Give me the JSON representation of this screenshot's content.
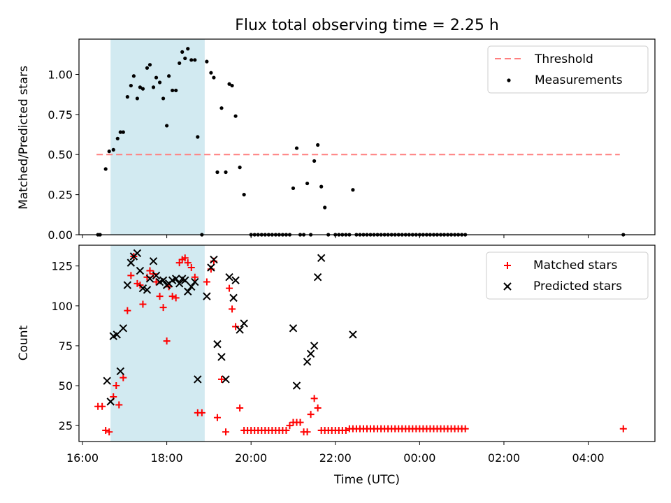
{
  "title": "Flux total observing time = 2.25 h",
  "xlabel": "Time (UTC)",
  "xticks": [
    "16:00",
    "18:00",
    "20:00",
    "22:00",
    "00:00",
    "02:00",
    "04:00"
  ],
  "colors": {
    "threshold": "#ff7f7f",
    "matched": "#ff0000",
    "predicted": "#000000",
    "shade": "#add8e6"
  },
  "chart_data": [
    {
      "type": "scatter",
      "panel": "top",
      "ylabel": "Matched/Predicted stars",
      "ylim": [
        0,
        1.22
      ],
      "yticks": [
        "0.00",
        "0.25",
        "0.50",
        "0.75",
        "1.00"
      ],
      "xlim": [
        "15:55",
        "05:35"
      ],
      "shaded_region": {
        "from": "16:40",
        "to": "18:54"
      },
      "legend": {
        "placement": "top-right",
        "entries": [
          "Threshold",
          "Measurements"
        ]
      },
      "threshold": {
        "name": "Threshold",
        "value": 0.5,
        "x_from": "16:20",
        "x_to": "04:45"
      },
      "series": [
        {
          "name": "Measurements",
          "marker": "dot",
          "points": [
            [
              "16:22",
              0
            ],
            [
              "16:25",
              0
            ],
            [
              "16:33",
              0.41
            ],
            [
              "16:38",
              0.52
            ],
            [
              "16:44",
              0.53
            ],
            [
              "16:50",
              0.6
            ],
            [
              "16:54",
              0.64
            ],
            [
              "16:58",
              0.64
            ],
            [
              "17:04",
              0.86
            ],
            [
              "17:09",
              0.93
            ],
            [
              "17:13",
              0.99
            ],
            [
              "17:18",
              0.85
            ],
            [
              "17:22",
              0.92
            ],
            [
              "17:26",
              0.91
            ],
            [
              "17:32",
              1.04
            ],
            [
              "17:36",
              1.06
            ],
            [
              "17:41",
              0.92
            ],
            [
              "17:45",
              0.98
            ],
            [
              "17:50",
              0.95
            ],
            [
              "17:55",
              0.85
            ],
            [
              "18:00",
              0.68
            ],
            [
              "18:03",
              0.99
            ],
            [
              "18:08",
              0.9
            ],
            [
              "18:13",
              0.9
            ],
            [
              "18:18",
              1.07
            ],
            [
              "18:22",
              1.14
            ],
            [
              "18:26",
              1.1
            ],
            [
              "18:30",
              1.16
            ],
            [
              "18:35",
              1.09
            ],
            [
              "18:40",
              1.09
            ],
            [
              "18:44",
              0.61
            ],
            [
              "18:50",
              0
            ],
            [
              "18:57",
              1.08
            ],
            [
              "19:03",
              1.01
            ],
            [
              "19:07",
              0.98
            ],
            [
              "19:12",
              0.39
            ],
            [
              "19:18",
              0.79
            ],
            [
              "19:24",
              0.39
            ],
            [
              "19:29",
              0.94
            ],
            [
              "19:33",
              0.93
            ],
            [
              "19:38",
              0.74
            ],
            [
              "19:44",
              0.42
            ],
            [
              "19:50",
              0.25
            ],
            [
              "20:00",
              0
            ],
            [
              "20:05",
              0
            ],
            [
              "20:10",
              0
            ],
            [
              "20:15",
              0
            ],
            [
              "20:20",
              0
            ],
            [
              "20:25",
              0
            ],
            [
              "20:30",
              0
            ],
            [
              "20:35",
              0
            ],
            [
              "20:40",
              0
            ],
            [
              "20:45",
              0
            ],
            [
              "20:50",
              0
            ],
            [
              "20:55",
              0
            ],
            [
              "21:00",
              0.29
            ],
            [
              "21:05",
              0.54
            ],
            [
              "21:10",
              0
            ],
            [
              "21:15",
              0
            ],
            [
              "21:20",
              0.32
            ],
            [
              "21:25",
              0
            ],
            [
              "21:30",
              0.46
            ],
            [
              "21:35",
              0.56
            ],
            [
              "21:40",
              0.3
            ],
            [
              "21:45",
              0.17
            ],
            [
              "21:50",
              0
            ],
            [
              "22:00",
              0
            ],
            [
              "22:05",
              0
            ],
            [
              "22:10",
              0
            ],
            [
              "22:15",
              0
            ],
            [
              "22:20",
              0
            ],
            [
              "22:25",
              0.28
            ],
            [
              "22:30",
              0
            ],
            [
              "22:35",
              0
            ],
            [
              "22:40",
              0
            ],
            [
              "22:45",
              0
            ],
            [
              "22:50",
              0
            ],
            [
              "22:55",
              0
            ],
            [
              "23:00",
              0
            ],
            [
              "23:05",
              0
            ],
            [
              "23:10",
              0
            ],
            [
              "23:15",
              0
            ],
            [
              "23:20",
              0
            ],
            [
              "23:25",
              0
            ],
            [
              "23:30",
              0
            ],
            [
              "23:35",
              0
            ],
            [
              "23:40",
              0
            ],
            [
              "23:45",
              0
            ],
            [
              "23:50",
              0
            ],
            [
              "23:55",
              0
            ],
            [
              "00:00",
              0
            ],
            [
              "00:05",
              0
            ],
            [
              "00:10",
              0
            ],
            [
              "00:15",
              0
            ],
            [
              "00:20",
              0
            ],
            [
              "00:25",
              0
            ],
            [
              "00:30",
              0
            ],
            [
              "00:35",
              0
            ],
            [
              "00:40",
              0
            ],
            [
              "00:45",
              0
            ],
            [
              "00:50",
              0
            ],
            [
              "00:55",
              0
            ],
            [
              "01:00",
              0
            ],
            [
              "01:05",
              0
            ],
            [
              "04:50",
              0
            ]
          ]
        }
      ]
    },
    {
      "type": "scatter",
      "panel": "bottom",
      "ylabel": "Count",
      "ylim": [
        15,
        138
      ],
      "yticks": [
        "25",
        "50",
        "75",
        "100",
        "125"
      ],
      "xlim": [
        "15:55",
        "05:35"
      ],
      "shaded_region": {
        "from": "16:40",
        "to": "18:54"
      },
      "legend": {
        "placement": "top-right",
        "entries": [
          "Matched stars",
          "Predicted stars"
        ]
      },
      "series": [
        {
          "name": "Matched stars",
          "marker": "plus",
          "points": [
            [
              "16:22",
              37
            ],
            [
              "16:28",
              37
            ],
            [
              "16:33",
              22
            ],
            [
              "16:38",
              21
            ],
            [
              "16:44",
              43
            ],
            [
              "16:48",
              50
            ],
            [
              "16:52",
              38
            ],
            [
              "16:58",
              55
            ],
            [
              "17:04",
              97
            ],
            [
              "17:09",
              119
            ],
            [
              "17:13",
              131
            ],
            [
              "17:18",
              114
            ],
            [
              "17:22",
              113
            ],
            [
              "17:26",
              101
            ],
            [
              "17:32",
              118
            ],
            [
              "17:36",
              122
            ],
            [
              "17:41",
              120
            ],
            [
              "17:45",
              115
            ],
            [
              "17:50",
              106
            ],
            [
              "17:55",
              99
            ],
            [
              "18:00",
              78
            ],
            [
              "18:03",
              112
            ],
            [
              "18:08",
              106
            ],
            [
              "18:13",
              105
            ],
            [
              "18:18",
              127
            ],
            [
              "18:22",
              129
            ],
            [
              "18:26",
              130
            ],
            [
              "18:30",
              127
            ],
            [
              "18:35",
              124
            ],
            [
              "18:40",
              118
            ],
            [
              "18:44",
              33
            ],
            [
              "18:50",
              33
            ],
            [
              "18:57",
              115
            ],
            [
              "19:03",
              123
            ],
            [
              "19:07",
              128
            ],
            [
              "19:12",
              30
            ],
            [
              "19:18",
              54
            ],
            [
              "19:24",
              21
            ],
            [
              "19:29",
              111
            ],
            [
              "19:33",
              98
            ],
            [
              "19:38",
              87
            ],
            [
              "19:44",
              36
            ],
            [
              "19:50",
              22
            ],
            [
              "19:55",
              22
            ],
            [
              "20:00",
              22
            ],
            [
              "20:05",
              22
            ],
            [
              "20:10",
              22
            ],
            [
              "20:15",
              22
            ],
            [
              "20:20",
              22
            ],
            [
              "20:25",
              22
            ],
            [
              "20:30",
              22
            ],
            [
              "20:35",
              22
            ],
            [
              "20:40",
              22
            ],
            [
              "20:45",
              22
            ],
            [
              "20:50",
              22
            ],
            [
              "20:55",
              25
            ],
            [
              "21:00",
              27
            ],
            [
              "21:05",
              27
            ],
            [
              "21:10",
              27
            ],
            [
              "21:15",
              21
            ],
            [
              "21:20",
              21
            ],
            [
              "21:25",
              32
            ],
            [
              "21:30",
              42
            ],
            [
              "21:35",
              36
            ],
            [
              "21:40",
              22
            ],
            [
              "21:45",
              22
            ],
            [
              "21:50",
              22
            ],
            [
              "21:55",
              22
            ],
            [
              "22:00",
              22
            ],
            [
              "22:05",
              22
            ],
            [
              "22:10",
              22
            ],
            [
              "22:15",
              22
            ],
            [
              "22:20",
              23
            ],
            [
              "22:25",
              23
            ],
            [
              "22:30",
              23
            ],
            [
              "22:35",
              23
            ],
            [
              "22:40",
              23
            ],
            [
              "22:45",
              23
            ],
            [
              "22:50",
              23
            ],
            [
              "22:55",
              23
            ],
            [
              "23:00",
              23
            ],
            [
              "23:05",
              23
            ],
            [
              "23:10",
              23
            ],
            [
              "23:15",
              23
            ],
            [
              "23:20",
              23
            ],
            [
              "23:25",
              23
            ],
            [
              "23:30",
              23
            ],
            [
              "23:35",
              23
            ],
            [
              "23:40",
              23
            ],
            [
              "23:45",
              23
            ],
            [
              "23:50",
              23
            ],
            [
              "23:55",
              23
            ],
            [
              "00:00",
              23
            ],
            [
              "00:05",
              23
            ],
            [
              "00:10",
              23
            ],
            [
              "00:15",
              23
            ],
            [
              "00:20",
              23
            ],
            [
              "00:25",
              23
            ],
            [
              "00:30",
              23
            ],
            [
              "00:35",
              23
            ],
            [
              "00:40",
              23
            ],
            [
              "00:45",
              23
            ],
            [
              "00:50",
              23
            ],
            [
              "00:55",
              23
            ],
            [
              "01:00",
              23
            ],
            [
              "01:05",
              23
            ],
            [
              "04:50",
              23
            ]
          ]
        },
        {
          "name": "Predicted stars",
          "marker": "x",
          "points": [
            [
              "16:35",
              53
            ],
            [
              "16:40",
              40
            ],
            [
              "16:44",
              81
            ],
            [
              "16:49",
              82
            ],
            [
              "16:54",
              59
            ],
            [
              "16:58",
              86
            ],
            [
              "17:04",
              113
            ],
            [
              "17:09",
              127
            ],
            [
              "17:13",
              131
            ],
            [
              "17:18",
              133
            ],
            [
              "17:22",
              122
            ],
            [
              "17:26",
              111
            ],
            [
              "17:32",
              110
            ],
            [
              "17:36",
              117
            ],
            [
              "17:41",
              128
            ],
            [
              "17:45",
              119
            ],
            [
              "17:50",
              115
            ],
            [
              "17:55",
              116
            ],
            [
              "18:00",
              113
            ],
            [
              "18:03",
              114
            ],
            [
              "18:08",
              116
            ],
            [
              "18:13",
              117
            ],
            [
              "18:18",
              114
            ],
            [
              "18:22",
              117
            ],
            [
              "18:26",
              116
            ],
            [
              "18:30",
              109
            ],
            [
              "18:35",
              112
            ],
            [
              "18:40",
              115
            ],
            [
              "18:44",
              54
            ],
            [
              "18:57",
              106
            ],
            [
              "19:03",
              124
            ],
            [
              "19:07",
              129
            ],
            [
              "19:12",
              76
            ],
            [
              "19:18",
              68
            ],
            [
              "19:24",
              54
            ],
            [
              "19:29",
              118
            ],
            [
              "19:35",
              105
            ],
            [
              "19:38",
              116
            ],
            [
              "19:44",
              85
            ],
            [
              "19:50",
              89
            ],
            [
              "21:00",
              86
            ],
            [
              "21:05",
              50
            ],
            [
              "21:20",
              65
            ],
            [
              "21:25",
              70
            ],
            [
              "21:30",
              75
            ],
            [
              "21:35",
              118
            ],
            [
              "21:40",
              130
            ],
            [
              "22:25",
              82
            ]
          ]
        }
      ]
    }
  ]
}
